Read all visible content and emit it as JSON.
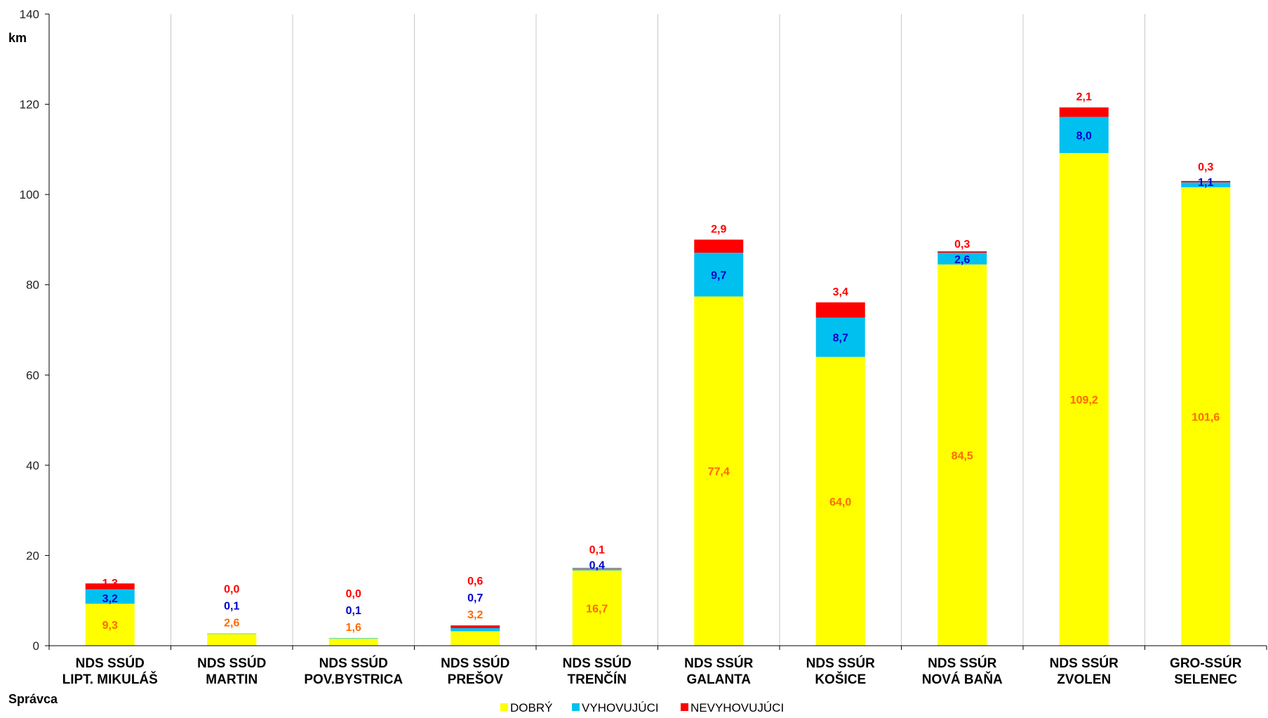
{
  "chart_data": {
    "type": "bar",
    "stacked": true,
    "title": "",
    "ylabel": "km",
    "xlabel": "Správca",
    "ylim": [
      0,
      140
    ],
    "yticks": [
      "0",
      "20",
      "40",
      "60",
      "80",
      "100",
      "120",
      "140"
    ],
    "grid": "vertical category separators",
    "legend_position": "bottom",
    "categories": [
      [
        "NDS SSÚD",
        "LIPT. MIKULÁŠ"
      ],
      [
        "NDS SSÚD",
        "MARTIN"
      ],
      [
        "NDS SSÚD",
        "POV.BYSTRICA"
      ],
      [
        "NDS SSÚD",
        "PREŠOV"
      ],
      [
        "NDS SSÚD",
        "TRENČÍN"
      ],
      [
        "NDS SSÚR",
        "GALANTA"
      ],
      [
        "NDS SSÚR",
        "KOŠICE"
      ],
      [
        "NDS SSÚR",
        "NOVÁ BAŇA"
      ],
      [
        "NDS SSÚR",
        "ZVOLEN"
      ],
      [
        "GRO-SSÚR",
        "SELENEC"
      ]
    ],
    "series": [
      {
        "name": "DOBRÝ",
        "color": "#ffff00",
        "label_color": "#ff6a00",
        "values": [
          9.3,
          2.6,
          1.6,
          3.2,
          16.7,
          77.4,
          64.0,
          84.5,
          109.2,
          101.6
        ],
        "labels": [
          "9,3",
          "2,6",
          "1,6",
          "3,2",
          "16,7",
          "77,4",
          "64,0",
          "84,5",
          "109,2",
          "101,6"
        ]
      },
      {
        "name": "VYHOVUJÚCI",
        "color": "#00c0f0",
        "label_color": "#0000cc",
        "values": [
          3.2,
          0.1,
          0.1,
          0.7,
          0.4,
          9.7,
          8.7,
          2.6,
          8.0,
          1.1
        ],
        "labels": [
          "3,2",
          "0,1",
          "0,1",
          "0,7",
          "0,4",
          "9,7",
          "8,7",
          "2,6",
          "8,0",
          "1,1"
        ]
      },
      {
        "name": "NEVYHOVUJÚCI",
        "color": "#ff0000",
        "label_color": "#ff0000",
        "values": [
          1.3,
          0.0,
          0.0,
          0.6,
          0.1,
          2.9,
          3.4,
          0.3,
          2.1,
          0.3
        ],
        "labels": [
          "1,3",
          "0,0",
          "0,0",
          "0,6",
          "0,1",
          "2,9",
          "3,4",
          "0,3",
          "2,1",
          "0,3"
        ]
      }
    ]
  }
}
